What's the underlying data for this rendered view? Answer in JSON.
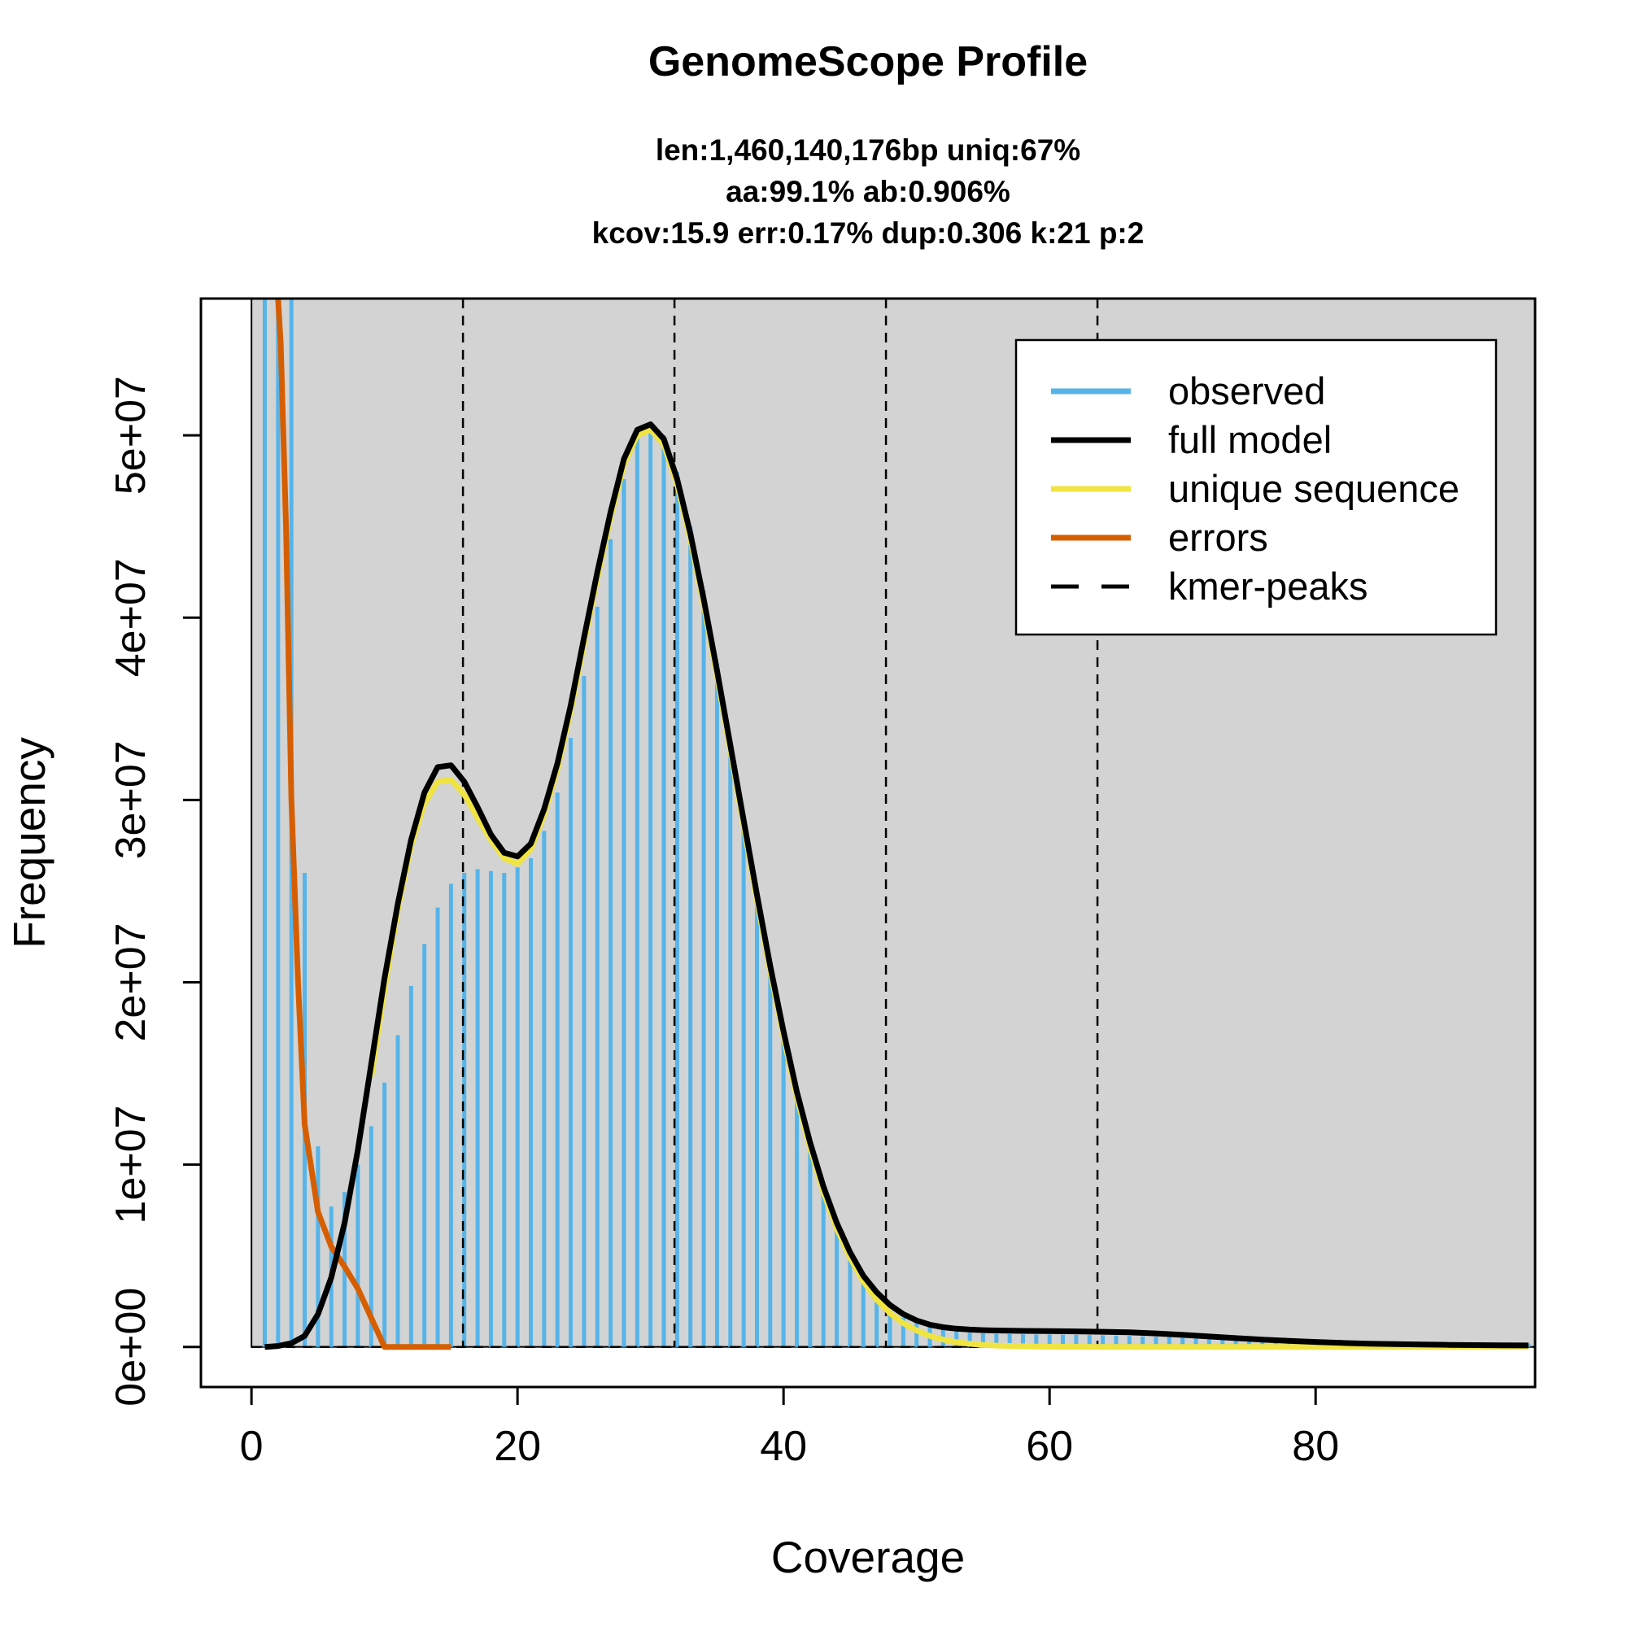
{
  "chart_data": {
    "type": "bar",
    "title": "GenomeScope Profile",
    "subtitle_lines": [
      "len:1,460,140,176bp uniq:67%",
      "aa:99.1% ab:0.906%",
      "kcov:15.9 err:0.17%  dup:0.306  k:21 p:2"
    ],
    "xlabel": "Coverage",
    "ylabel": "Frequency",
    "xlim": [
      -3.8,
      96.5
    ],
    "ylim": [
      -2200000,
      57500000
    ],
    "x_ticks": [
      0,
      20,
      40,
      60,
      80
    ],
    "x_tick_labels": [
      "0",
      "20",
      "40",
      "60",
      "80"
    ],
    "y_ticks": [
      0,
      10000000,
      20000000,
      30000000,
      40000000,
      50000000
    ],
    "y_tick_labels": [
      "0e+00",
      "1e+07",
      "2e+07",
      "3e+07",
      "4e+07",
      "5e+07"
    ],
    "grid": false,
    "background": "#d3d3d3",
    "kmer_peaks": [
      15.9,
      31.8,
      47.7,
      63.6
    ],
    "observed": {
      "x": [
        1,
        2,
        3,
        4,
        5,
        6,
        7,
        8,
        9,
        10,
        11,
        12,
        13,
        14,
        15,
        16,
        17,
        18,
        19,
        20,
        21,
        22,
        23,
        24,
        25,
        26,
        27,
        28,
        29,
        30,
        31,
        32,
        33,
        34,
        35,
        36,
        37,
        38,
        39,
        40,
        41,
        42,
        43,
        44,
        45,
        46,
        47,
        48,
        49,
        50,
        51,
        52,
        53,
        54,
        55,
        56,
        57,
        58,
        59,
        60,
        61,
        62,
        63,
        64,
        65,
        66,
        67,
        68,
        69,
        70,
        71,
        72,
        73,
        74,
        75,
        76,
        77,
        78,
        79,
        80,
        81,
        82,
        83,
        84,
        85,
        86,
        87,
        88,
        89,
        90,
        91,
        92,
        93,
        94,
        95,
        96
      ],
      "values": [
        57500000,
        57500000,
        57500000,
        26000000,
        11000000,
        7700000,
        8500000,
        10000000,
        12100000,
        14500000,
        17100000,
        19800000,
        22100000,
        24100000,
        25400000,
        26000000,
        26200000,
        26100000,
        26000000,
        26300000,
        26800000,
        28300000,
        30400000,
        33400000,
        36800000,
        40600000,
        44300000,
        47600000,
        49900000,
        50500000,
        50000000,
        48000000,
        45000000,
        41500000,
        37500000,
        33300000,
        29000000,
        24800000,
        20800000,
        17100000,
        13800000,
        10900000,
        8400000,
        6400000,
        4800000,
        3600000,
        2700000,
        2000000,
        1600000,
        1300000,
        1100000,
        950000,
        850000,
        780000,
        740000,
        720000,
        700000,
        690000,
        680000,
        680000,
        670000,
        660000,
        650000,
        640000,
        620000,
        600000,
        580000,
        560000,
        540000,
        520000,
        500000,
        480000,
        460000,
        440000,
        420000,
        400000,
        380000,
        360000,
        350000,
        340000,
        330000,
        320000,
        310000,
        300000,
        290000,
        280000,
        270000,
        260000,
        250000,
        240000,
        230000,
        220000,
        210000,
        200000,
        190000,
        180000
      ]
    },
    "series": [
      {
        "name": "full model",
        "color": "#000000",
        "x": [
          1,
          2,
          3,
          4,
          5,
          6,
          7,
          8,
          9,
          10,
          11,
          12,
          13,
          14,
          15,
          16,
          17,
          18,
          19,
          20,
          21,
          22,
          23,
          24,
          25,
          26,
          27,
          28,
          29,
          30,
          31,
          32,
          33,
          34,
          35,
          36,
          37,
          38,
          39,
          40,
          41,
          42,
          43,
          44,
          45,
          46,
          47,
          48,
          49,
          50,
          51,
          52,
          53,
          54,
          55,
          56,
          57,
          58,
          60,
          62,
          64,
          66,
          68,
          70,
          72,
          74,
          76,
          78,
          80,
          82,
          84,
          86,
          88,
          90,
          92,
          94,
          96
        ],
        "y": [
          0,
          50000,
          200000,
          600000,
          1800000,
          3800000,
          6800000,
          10800000,
          15500000,
          20200000,
          24300000,
          27800000,
          30400000,
          31800000,
          31900000,
          31000000,
          29600000,
          28100000,
          27100000,
          26900000,
          27600000,
          29500000,
          32000000,
          35200000,
          38900000,
          42500000,
          45800000,
          48700000,
          50300000,
          50600000,
          49800000,
          47600000,
          44600000,
          41000000,
          37100000,
          33000000,
          28900000,
          24800000,
          20900000,
          17300000,
          14000000,
          11200000,
          8800000,
          6800000,
          5200000,
          3900000,
          3000000,
          2300000,
          1800000,
          1450000,
          1220000,
          1080000,
          1000000,
          950000,
          920000,
          900000,
          890000,
          880000,
          870000,
          850000,
          830000,
          800000,
          740000,
          660000,
          570000,
          480000,
          400000,
          330000,
          270000,
          220000,
          180000,
          150000,
          130000,
          110000,
          100000,
          90000,
          80000
        ]
      },
      {
        "name": "unique sequence",
        "color": "#f0e442",
        "x": [
          9,
          10,
          11,
          12,
          13,
          14,
          15,
          16,
          17,
          18,
          19,
          20,
          21,
          22,
          23,
          24,
          25,
          26,
          27,
          28,
          29,
          30,
          31,
          32,
          33,
          34,
          35,
          36,
          37,
          38,
          39,
          40,
          41,
          42,
          43,
          44,
          45,
          46,
          47,
          48,
          49,
          50,
          51,
          52,
          53,
          54,
          55,
          56,
          58,
          60,
          65,
          70,
          75,
          80,
          85,
          90,
          96
        ],
        "y": [
          14800000,
          19600000,
          24000000,
          27500000,
          29800000,
          31000000,
          31100000,
          30300000,
          29000000,
          27800000,
          26800000,
          26500000,
          27300000,
          29200000,
          31700000,
          34900000,
          38600000,
          42200000,
          45500000,
          48400000,
          50000000,
          50300000,
          49500000,
          47300000,
          44300000,
          40700000,
          36800000,
          32700000,
          28600000,
          24500000,
          20600000,
          17000000,
          13700000,
          10900000,
          8500000,
          6500000,
          4900000,
          3600000,
          2600000,
          1850000,
          1300000,
          900000,
          600000,
          400000,
          260000,
          170000,
          110000,
          70000,
          30000,
          10000,
          0,
          0,
          0,
          0,
          0,
          0,
          0
        ]
      },
      {
        "name": "errors",
        "color": "#d55e00",
        "x": [
          2,
          2.2,
          2.6,
          3,
          3.5,
          4,
          5,
          6,
          7,
          8,
          9,
          10,
          11,
          12,
          13,
          14,
          15
        ],
        "y": [
          57500000,
          55000000,
          45000000,
          30000000,
          20000000,
          12200000,
          7400000,
          5500000,
          4400000,
          3200000,
          1600000,
          0,
          0,
          0,
          0,
          0,
          0
        ]
      }
    ],
    "legend": {
      "placement": "top-right",
      "entries": [
        {
          "label": "observed",
          "color": "#56b4e9",
          "style": "solid"
        },
        {
          "label": "full model",
          "color": "#000000",
          "style": "solid"
        },
        {
          "label": "unique sequence",
          "color": "#f0e442",
          "style": "solid"
        },
        {
          "label": "errors",
          "color": "#d55e00",
          "style": "solid"
        },
        {
          "label": "kmer-peaks",
          "color": "#000000",
          "style": "dashed"
        }
      ]
    }
  }
}
